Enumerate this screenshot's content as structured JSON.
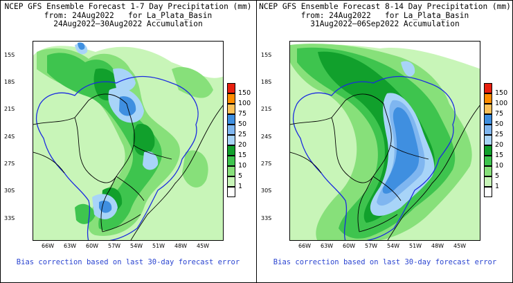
{
  "panels": [
    {
      "title_line1": "NCEP GFS Ensemble Forecast 1-7 Day Precipitation (mm)",
      "title_line2": "from: 24Aug2022   for La_Plata_Basin",
      "title_line3": "24Aug2022–30Aug2022 Accumulation",
      "lat_labels": [
        "15S",
        "18S",
        "21S",
        "24S",
        "27S",
        "30S",
        "33S"
      ],
      "lon_labels": [
        "66W",
        "63W",
        "60W",
        "57W",
        "54W",
        "51W",
        "48W",
        "45W"
      ],
      "bias_note": "Bias correction based on last 30-day forecast error"
    },
    {
      "title_line1": "NCEP GFS Ensemble Forecast 8-14 Day Precipitation (mm)",
      "title_line2": "from: 24Aug2022   for La_Plata_Basin",
      "title_line3": "31Aug2022–06Sep2022 Accumulation",
      "lat_labels": [
        "15S",
        "18S",
        "21S",
        "24S",
        "27S",
        "30S",
        "33S"
      ],
      "lon_labels": [
        "66W",
        "63W",
        "60W",
        "57W",
        "54W",
        "51W",
        "48W",
        "45W"
      ],
      "bias_note": "Bias correction based on last 30-day forecast error"
    }
  ],
  "legend": {
    "levels": [
      {
        "label": "150",
        "color": "#e8200f"
      },
      {
        "label": "100",
        "color": "#ff8c00"
      },
      {
        "label": "75",
        "color": "#fcc15a"
      },
      {
        "label": "50",
        "color": "#3f8fe0"
      },
      {
        "label": "25",
        "color": "#7fb6f0"
      },
      {
        "label": "20",
        "color": "#a8d4f8"
      },
      {
        "label": "15",
        "color": "#11a02c"
      },
      {
        "label": "10",
        "color": "#3ec44e"
      },
      {
        "label": "5",
        "color": "#87e07a"
      },
      {
        "label": "1",
        "color": "#c8f5b8"
      },
      {
        "label": "",
        "color": "#ffffff"
      }
    ]
  }
}
